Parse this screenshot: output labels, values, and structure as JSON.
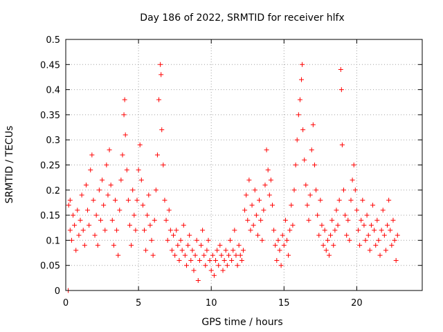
{
  "chart_data": {
    "type": "scatter",
    "title": "Day 186 of 2022, SRMTID for receiver hlfx",
    "xlabel": "GPS time / hours",
    "ylabel": "SRMTID / TECUs",
    "xlim": [
      0,
      24.5
    ],
    "ylim": [
      0,
      0.5
    ],
    "xticks": [
      0,
      5,
      10,
      15,
      20
    ],
    "yticks": [
      0,
      0.05,
      0.1,
      0.15,
      0.2,
      0.25,
      0.3,
      0.35,
      0.4,
      0.45,
      0.5
    ],
    "xtick_labels": [
      "0",
      "5",
      "10",
      "15",
      "20"
    ],
    "ytick_labels": [
      "0",
      "0.05",
      "0.1",
      "0.15",
      "0.2",
      "0.25",
      "0.3",
      "0.35",
      "0.4",
      "0.45",
      "0.5"
    ],
    "grid": true,
    "marker": "plus",
    "series_color": "#ff0000",
    "series": [
      {
        "points": [
          [
            0.17,
            0.0
          ],
          [
            0.2,
            0.17
          ],
          [
            0.3,
            0.12
          ],
          [
            0.3,
            0.18
          ],
          [
            0.4,
            0.1
          ],
          [
            0.5,
            0.15
          ],
          [
            0.6,
            0.13
          ],
          [
            0.7,
            0.08
          ],
          [
            0.8,
            0.16
          ],
          [
            0.9,
            0.11
          ],
          [
            1.0,
            0.14
          ],
          [
            1.1,
            0.19
          ],
          [
            1.2,
            0.12
          ],
          [
            1.3,
            0.09
          ],
          [
            1.4,
            0.21
          ],
          [
            1.5,
            0.16
          ],
          [
            1.6,
            0.13
          ],
          [
            1.7,
            0.24
          ],
          [
            1.8,
            0.27
          ],
          [
            1.9,
            0.18
          ],
          [
            2.0,
            0.11
          ],
          [
            2.1,
            0.15
          ],
          [
            2.2,
            0.09
          ],
          [
            2.3,
            0.2
          ],
          [
            2.4,
            0.14
          ],
          [
            2.5,
            0.22
          ],
          [
            2.6,
            0.17
          ],
          [
            2.7,
            0.12
          ],
          [
            2.8,
            0.25
          ],
          [
            2.9,
            0.19
          ],
          [
            3.0,
            0.28
          ],
          [
            3.1,
            0.21
          ],
          [
            3.2,
            0.14
          ],
          [
            3.3,
            0.09
          ],
          [
            3.4,
            0.18
          ],
          [
            3.5,
            0.12
          ],
          [
            3.6,
            0.07
          ],
          [
            3.7,
            0.16
          ],
          [
            3.8,
            0.22
          ],
          [
            3.9,
            0.27
          ],
          [
            4.0,
            0.35
          ],
          [
            4.05,
            0.38
          ],
          [
            4.1,
            0.31
          ],
          [
            4.2,
            0.24
          ],
          [
            4.3,
            0.18
          ],
          [
            4.4,
            0.13
          ],
          [
            4.5,
            0.09
          ],
          [
            4.6,
            0.2
          ],
          [
            4.7,
            0.15
          ],
          [
            4.8,
            0.12
          ],
          [
            4.9,
            0.18
          ],
          [
            5.0,
            0.24
          ],
          [
            5.1,
            0.29
          ],
          [
            5.2,
            0.22
          ],
          [
            5.3,
            0.17
          ],
          [
            5.4,
            0.12
          ],
          [
            5.5,
            0.08
          ],
          [
            5.6,
            0.15
          ],
          [
            5.7,
            0.19
          ],
          [
            5.8,
            0.13
          ],
          [
            5.9,
            0.1
          ],
          [
            6.0,
            0.07
          ],
          [
            6.1,
            0.14
          ],
          [
            6.2,
            0.2
          ],
          [
            6.3,
            0.27
          ],
          [
            6.4,
            0.38
          ],
          [
            6.5,
            0.45
          ],
          [
            6.55,
            0.43
          ],
          [
            6.6,
            0.32
          ],
          [
            6.7,
            0.25
          ],
          [
            6.8,
            0.18
          ],
          [
            6.9,
            0.14
          ],
          [
            7.0,
            0.1
          ],
          [
            7.1,
            0.16
          ],
          [
            7.2,
            0.12
          ],
          [
            7.3,
            0.08
          ],
          [
            7.4,
            0.11
          ],
          [
            7.5,
            0.07
          ],
          [
            7.6,
            0.12
          ],
          [
            7.7,
            0.09
          ],
          [
            7.8,
            0.06
          ],
          [
            7.9,
            0.1
          ],
          [
            8.0,
            0.08
          ],
          [
            8.1,
            0.13
          ],
          [
            8.2,
            0.07
          ],
          [
            8.3,
            0.05
          ],
          [
            8.4,
            0.09
          ],
          [
            8.5,
            0.11
          ],
          [
            8.6,
            0.06
          ],
          [
            8.7,
            0.08
          ],
          [
            8.8,
            0.04
          ],
          [
            8.9,
            0.07
          ],
          [
            9.0,
            0.1
          ],
          [
            9.1,
            0.02
          ],
          [
            9.2,
            0.06
          ],
          [
            9.3,
            0.09
          ],
          [
            9.4,
            0.12
          ],
          [
            9.5,
            0.07
          ],
          [
            9.6,
            0.05
          ],
          [
            9.7,
            0.08
          ],
          [
            9.8,
            0.1
          ],
          [
            9.9,
            0.06
          ],
          [
            10.0,
            0.04
          ],
          [
            10.1,
            0.07
          ],
          [
            10.2,
            0.03
          ],
          [
            10.3,
            0.06
          ],
          [
            10.4,
            0.08
          ],
          [
            10.5,
            0.05
          ],
          [
            10.6,
            0.09
          ],
          [
            10.7,
            0.07
          ],
          [
            10.8,
            0.04
          ],
          [
            10.9,
            0.06
          ],
          [
            11.0,
            0.08
          ],
          [
            11.1,
            0.05
          ],
          [
            11.2,
            0.07
          ],
          [
            11.3,
            0.1
          ],
          [
            11.4,
            0.06
          ],
          [
            11.5,
            0.08
          ],
          [
            11.6,
            0.12
          ],
          [
            11.7,
            0.07
          ],
          [
            11.8,
            0.05
          ],
          [
            11.9,
            0.09
          ],
          [
            12.0,
            0.07
          ],
          [
            12.1,
            0.06
          ],
          [
            12.2,
            0.08
          ],
          [
            12.3,
            0.16
          ],
          [
            12.4,
            0.19
          ],
          [
            12.5,
            0.14
          ],
          [
            12.6,
            0.22
          ],
          [
            12.7,
            0.12
          ],
          [
            12.8,
            0.17
          ],
          [
            12.9,
            0.13
          ],
          [
            13.0,
            0.2
          ],
          [
            13.1,
            0.15
          ],
          [
            13.2,
            0.11
          ],
          [
            13.3,
            0.18
          ],
          [
            13.4,
            0.14
          ],
          [
            13.5,
            0.1
          ],
          [
            13.6,
            0.16
          ],
          [
            13.7,
            0.21
          ],
          [
            13.8,
            0.28
          ],
          [
            13.9,
            0.24
          ],
          [
            14.0,
            0.19
          ],
          [
            14.1,
            0.22
          ],
          [
            14.2,
            0.17
          ],
          [
            14.3,
            0.12
          ],
          [
            14.4,
            0.09
          ],
          [
            14.5,
            0.06
          ],
          [
            14.6,
            0.1
          ],
          [
            14.7,
            0.08
          ],
          [
            14.8,
            0.05
          ],
          [
            14.9,
            0.11
          ],
          [
            15.0,
            0.09
          ],
          [
            15.1,
            0.14
          ],
          [
            15.2,
            0.1
          ],
          [
            15.3,
            0.07
          ],
          [
            15.4,
            0.12
          ],
          [
            15.5,
            0.17
          ],
          [
            15.6,
            0.13
          ],
          [
            15.7,
            0.2
          ],
          [
            15.8,
            0.25
          ],
          [
            15.9,
            0.3
          ],
          [
            16.0,
            0.35
          ],
          [
            16.1,
            0.38
          ],
          [
            16.2,
            0.42
          ],
          [
            16.25,
            0.45
          ],
          [
            16.3,
            0.32
          ],
          [
            16.4,
            0.26
          ],
          [
            16.5,
            0.21
          ],
          [
            16.6,
            0.17
          ],
          [
            16.7,
            0.14
          ],
          [
            16.8,
            0.19
          ],
          [
            16.9,
            0.28
          ],
          [
            17.0,
            0.33
          ],
          [
            17.1,
            0.25
          ],
          [
            17.2,
            0.2
          ],
          [
            17.3,
            0.15
          ],
          [
            17.4,
            0.11
          ],
          [
            17.5,
            0.18
          ],
          [
            17.6,
            0.13
          ],
          [
            17.7,
            0.09
          ],
          [
            17.8,
            0.12
          ],
          [
            17.9,
            0.08
          ],
          [
            18.0,
            0.1
          ],
          [
            18.1,
            0.07
          ],
          [
            18.2,
            0.11
          ],
          [
            18.3,
            0.14
          ],
          [
            18.4,
            0.09
          ],
          [
            18.5,
            0.12
          ],
          [
            18.6,
            0.16
          ],
          [
            18.7,
            0.13
          ],
          [
            18.8,
            0.18
          ],
          [
            18.9,
            0.44
          ],
          [
            18.95,
            0.4
          ],
          [
            19.0,
            0.29
          ],
          [
            19.1,
            0.2
          ],
          [
            19.2,
            0.15
          ],
          [
            19.3,
            0.11
          ],
          [
            19.4,
            0.14
          ],
          [
            19.5,
            0.1
          ],
          [
            19.6,
            0.18
          ],
          [
            19.7,
            0.22
          ],
          [
            19.8,
            0.25
          ],
          [
            19.9,
            0.2
          ],
          [
            20.0,
            0.16
          ],
          [
            20.1,
            0.12
          ],
          [
            20.2,
            0.09
          ],
          [
            20.3,
            0.14
          ],
          [
            20.4,
            0.18
          ],
          [
            20.5,
            0.13
          ],
          [
            20.6,
            0.1
          ],
          [
            20.7,
            0.15
          ],
          [
            20.8,
            0.11
          ],
          [
            20.9,
            0.08
          ],
          [
            21.0,
            0.13
          ],
          [
            21.1,
            0.17
          ],
          [
            21.2,
            0.12
          ],
          [
            21.3,
            0.09
          ],
          [
            21.4,
            0.14
          ],
          [
            21.5,
            0.1
          ],
          [
            21.6,
            0.07
          ],
          [
            21.7,
            0.12
          ],
          [
            21.8,
            0.16
          ],
          [
            21.9,
            0.11
          ],
          [
            22.0,
            0.08
          ],
          [
            22.1,
            0.13
          ],
          [
            22.2,
            0.18
          ],
          [
            22.3,
            0.12
          ],
          [
            22.4,
            0.09
          ],
          [
            22.5,
            0.14
          ],
          [
            22.6,
            0.1
          ],
          [
            22.7,
            0.06
          ],
          [
            22.8,
            0.11
          ]
        ]
      }
    ]
  }
}
